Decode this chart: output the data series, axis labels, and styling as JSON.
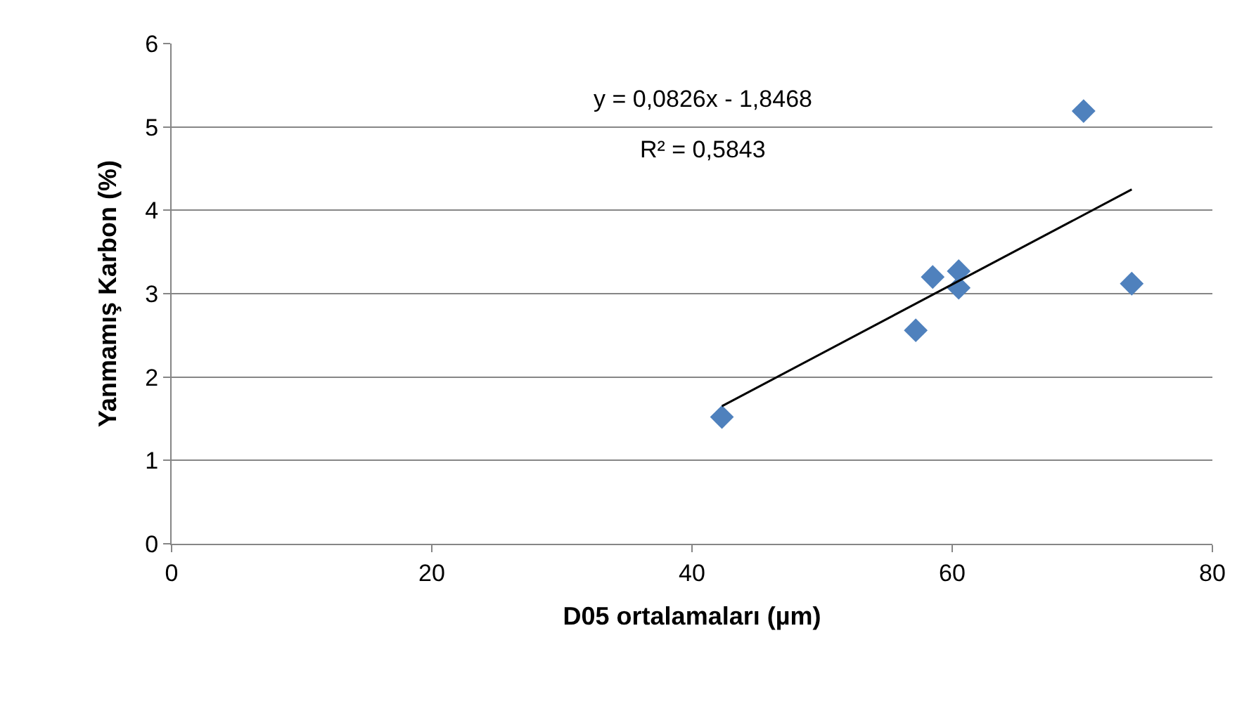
{
  "chart_data": {
    "type": "scatter",
    "xlabel": "D05 ortalamaları (µm)",
    "ylabel": "Yanmamış Karbon (%)",
    "xlim": [
      0,
      80
    ],
    "xticks": [
      0,
      20,
      40,
      60,
      80
    ],
    "ylim": [
      0,
      6
    ],
    "yticks": [
      0,
      1,
      2,
      3,
      4,
      5,
      6
    ],
    "grid": "y",
    "legend": false,
    "series": [
      {
        "marker": "diamond",
        "color": "#4f81bd",
        "x": [
          42.3,
          57.2,
          58.5,
          60.5,
          60.5,
          70.1,
          73.8
        ],
        "values": [
          1.52,
          2.56,
          3.2,
          3.27,
          3.07,
          5.19,
          3.12
        ]
      },
      {
        "type": "line",
        "color": "#000000",
        "line_style": "solid",
        "x": [
          42.3,
          73.8
        ],
        "values": [
          1.65,
          4.25
        ]
      }
    ],
    "annotations": [
      "y = 0,0826x - 1,8468",
      "R² = 0,5843"
    ]
  }
}
